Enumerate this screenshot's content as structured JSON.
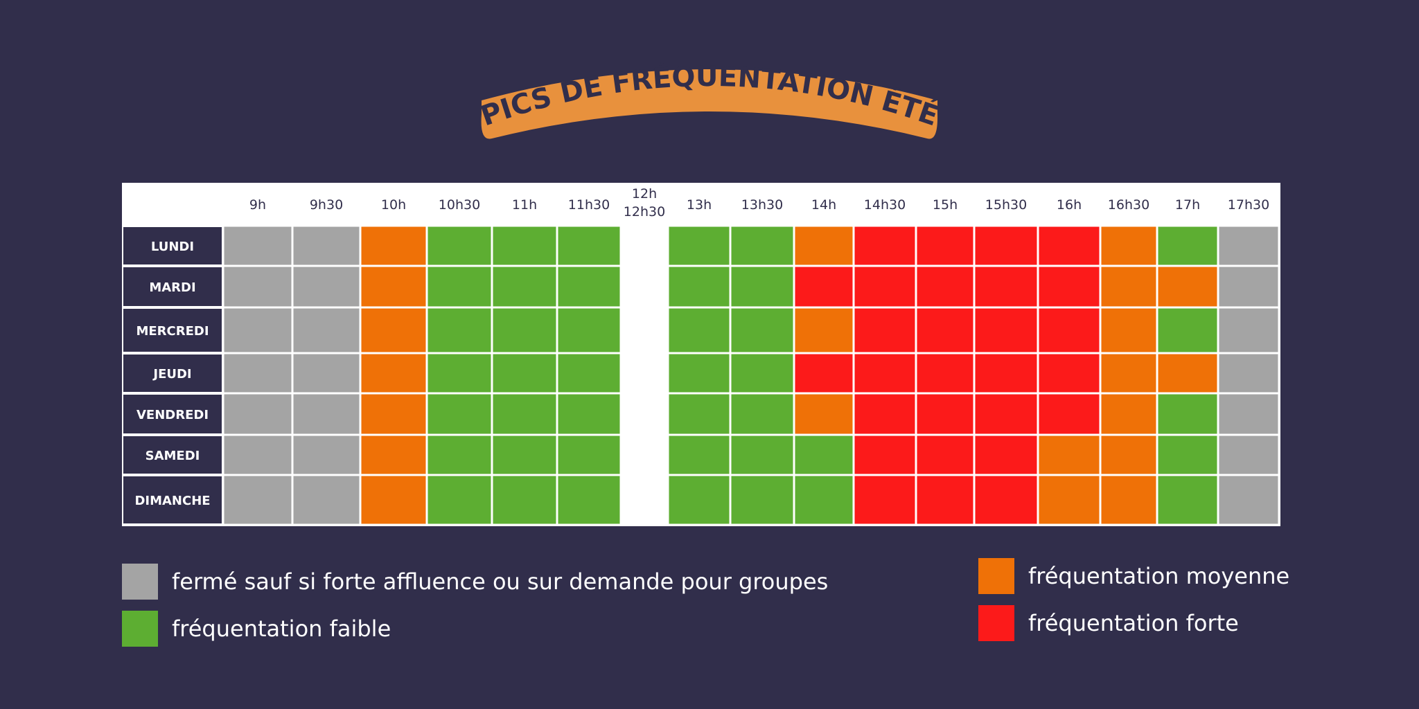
{
  "title": "PICS DE FRÉQUENTATION ÉTÉ",
  "colors": {
    "background": "#312e4b",
    "banner": "#e8913d",
    "ferme": "#a4a4a4",
    "faible": "#5dae32",
    "moyenne": "#ef7107",
    "forte": "#fc1a1a",
    "header_bg": "#ffffff",
    "day_bg": "#312e4b"
  },
  "chart_data": {
    "type": "heatmap",
    "columns": [
      "9h",
      "9h30",
      "10h",
      "10h30",
      "11h",
      "11h30",
      "12h\n12h30",
      "13h",
      "13h30",
      "14h",
      "14h30",
      "15h",
      "15h30",
      "16h",
      "16h30",
      "17h",
      "17h30"
    ],
    "rows": [
      "LUNDI",
      "MARDI",
      "MERCREDI",
      "JEUDI",
      "VENDREDI",
      "SAMEDI",
      "DIMANCHE"
    ],
    "values": [
      [
        "ferme",
        "ferme",
        "moyenne",
        "faible",
        "faible",
        "faible",
        "pause",
        "faible",
        "faible",
        "moyenne",
        "forte",
        "forte",
        "forte",
        "forte",
        "moyenne",
        "faible",
        "ferme"
      ],
      [
        "ferme",
        "ferme",
        "moyenne",
        "faible",
        "faible",
        "faible",
        "pause",
        "faible",
        "faible",
        "forte",
        "forte",
        "forte",
        "forte",
        "forte",
        "moyenne",
        "moyenne",
        "ferme"
      ],
      [
        "ferme",
        "ferme",
        "moyenne",
        "faible",
        "faible",
        "faible",
        "pause",
        "faible",
        "faible",
        "moyenne",
        "forte",
        "forte",
        "forte",
        "forte",
        "moyenne",
        "faible",
        "ferme"
      ],
      [
        "ferme",
        "ferme",
        "moyenne",
        "faible",
        "faible",
        "faible",
        "pause",
        "faible",
        "faible",
        "forte",
        "forte",
        "forte",
        "forte",
        "forte",
        "moyenne",
        "moyenne",
        "ferme"
      ],
      [
        "ferme",
        "ferme",
        "moyenne",
        "faible",
        "faible",
        "faible",
        "pause",
        "faible",
        "faible",
        "moyenne",
        "forte",
        "forte",
        "forte",
        "forte",
        "moyenne",
        "faible",
        "ferme"
      ],
      [
        "ferme",
        "ferme",
        "moyenne",
        "faible",
        "faible",
        "faible",
        "pause",
        "faible",
        "faible",
        "faible",
        "forte",
        "forte",
        "forte",
        "moyenne",
        "moyenne",
        "faible",
        "ferme"
      ],
      [
        "ferme",
        "ferme",
        "moyenne",
        "faible",
        "faible",
        "faible",
        "pause",
        "faible",
        "faible",
        "faible",
        "forte",
        "forte",
        "forte",
        "moyenne",
        "moyenne",
        "faible",
        "ferme"
      ]
    ],
    "legend": [
      {
        "key": "ferme",
        "label": "fermé sauf si forte affluence ou sur demande pour groupes"
      },
      {
        "key": "faible",
        "label": "fréquentation faible"
      },
      {
        "key": "moyenne",
        "label": "fréquentation moyenne"
      },
      {
        "key": "forte",
        "label": "fréquentation forte"
      }
    ],
    "legend_placement": "bottom"
  }
}
